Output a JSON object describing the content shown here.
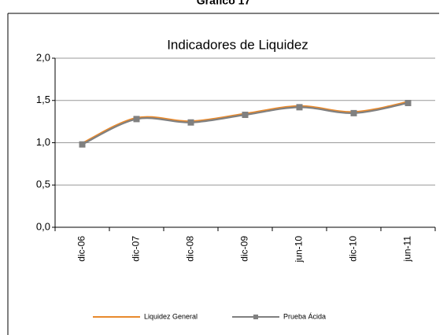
{
  "chart_data": {
    "type": "line",
    "caption": "Gráfico 17",
    "title": "Indicadores de Liquidez",
    "categories": [
      "dic-06",
      "dic-07",
      "dic-08",
      "dic-09",
      "jun-10",
      "dic-10",
      "jun-11"
    ],
    "series": [
      {
        "name": "Liquidez General",
        "color": "#e8892c",
        "values": [
          0.99,
          1.29,
          1.25,
          1.34,
          1.43,
          1.36,
          1.48
        ]
      },
      {
        "name": "Prueba Ácida",
        "color": "#808080",
        "values": [
          0.98,
          1.28,
          1.24,
          1.33,
          1.42,
          1.35,
          1.47
        ]
      }
    ],
    "ylim": [
      0,
      2
    ],
    "yticks": [
      {
        "value": 0,
        "label": "0,0"
      },
      {
        "value": 0.5,
        "label": "0,5"
      },
      {
        "value": 1,
        "label": "1,0"
      },
      {
        "value": 1.5,
        "label": "1,5"
      },
      {
        "value": 2,
        "label": "2,0"
      }
    ],
    "grid": true
  }
}
